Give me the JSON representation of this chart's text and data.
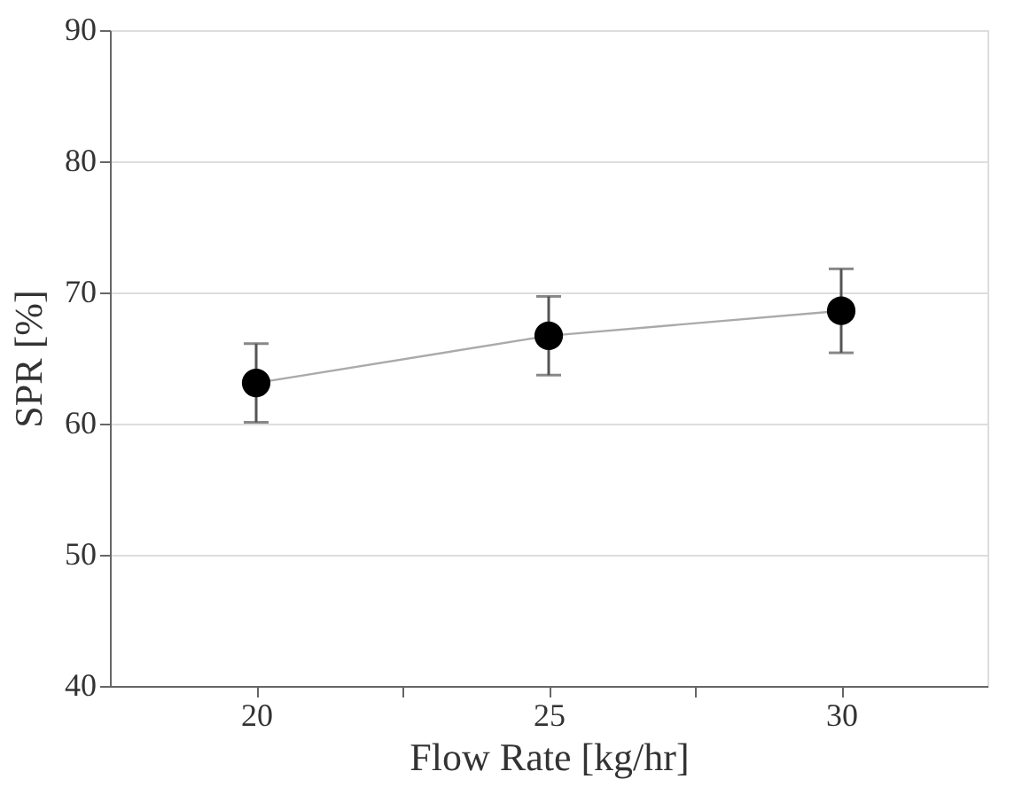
{
  "chart_data": {
    "type": "line",
    "xlabel": "Flow Rate [kg/hr]",
    "ylabel": "SPR [%]",
    "x": [
      20,
      25,
      30
    ],
    "series": [
      {
        "color": "#000000",
        "values": [
          63.1,
          66.7,
          68.6
        ],
        "errors": [
          3.0,
          3.0,
          3.2
        ]
      }
    ],
    "xlim": [
      17.5,
      32.5
    ],
    "xticks": [
      20,
      {
        "value": 22.5,
        "label": null
      },
      25,
      {
        "value": 27.5,
        "label": null
      },
      30
    ],
    "ylim": [
      40,
      90
    ],
    "yticks": [
      40,
      50,
      60,
      70,
      80,
      90
    ],
    "grid": "y",
    "marker": "circle",
    "line_style": "solid"
  }
}
